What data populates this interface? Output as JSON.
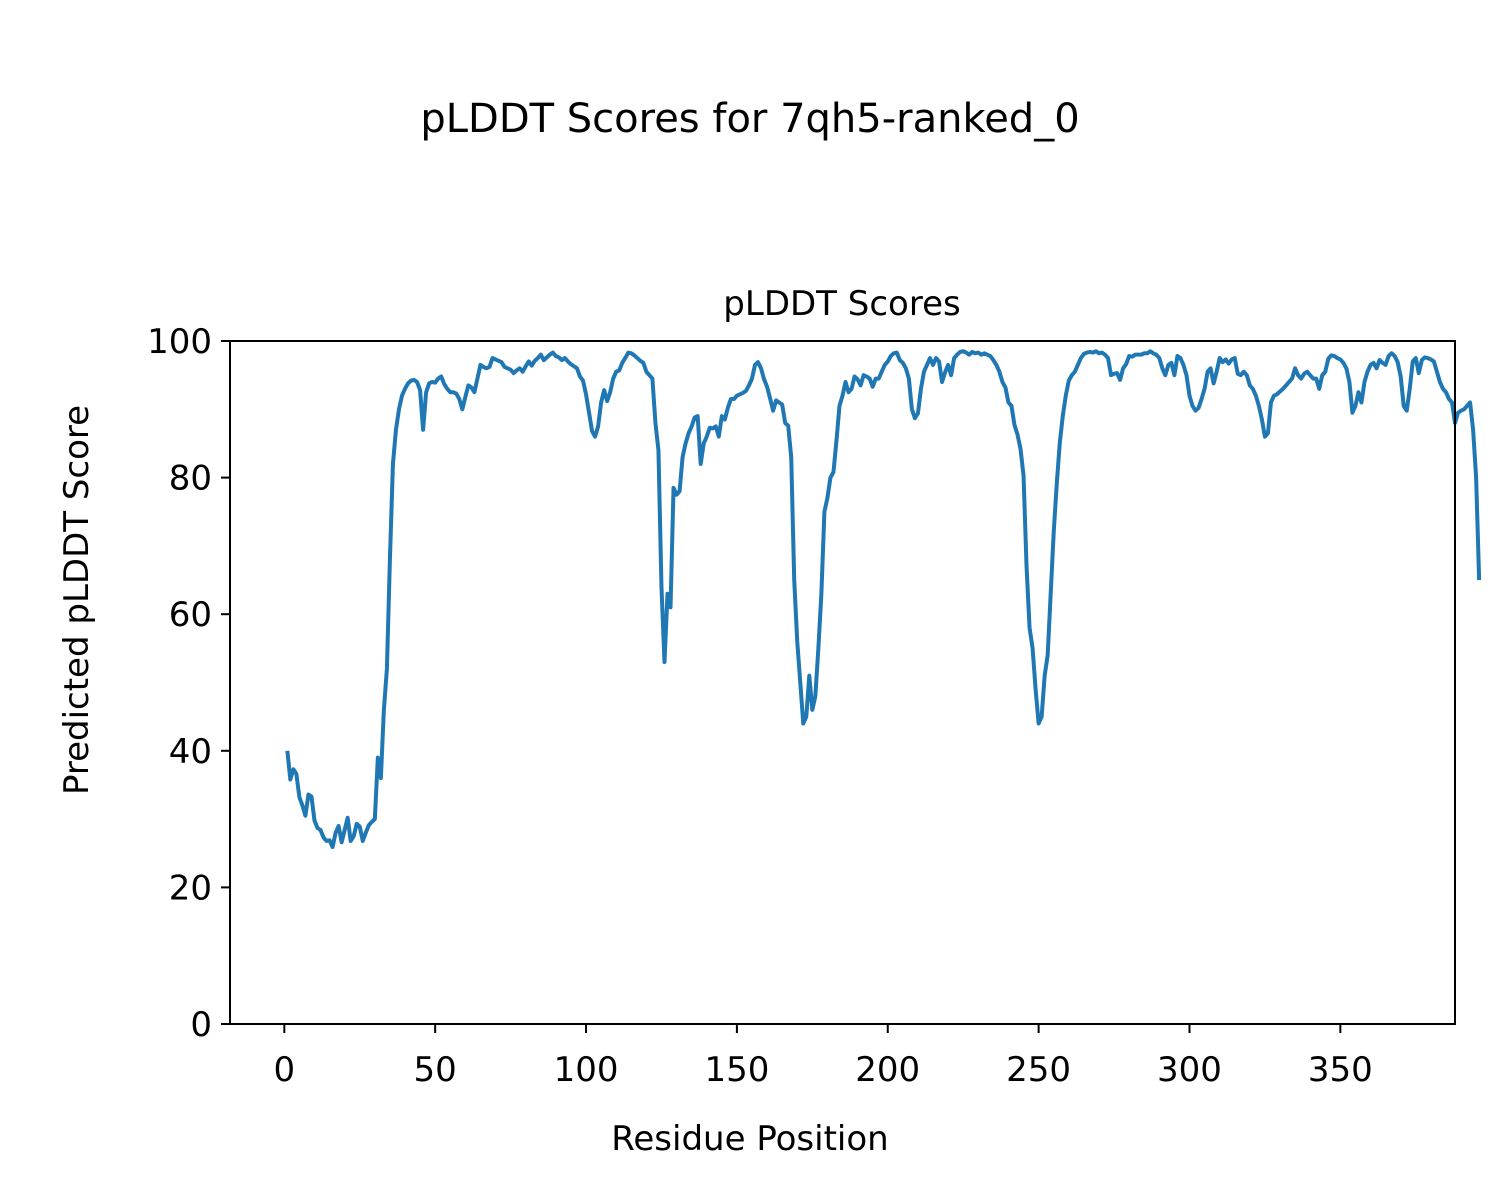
{
  "figure": {
    "suptitle": "pLDDT Scores for 7qh5-ranked_0"
  },
  "chart_data": {
    "type": "line",
    "title": "pLDDT Scores",
    "xlabel": "Residue Position",
    "ylabel": "Predicted pLDDT Score",
    "xlim": [
      -18,
      388
    ],
    "ylim": [
      0,
      100
    ],
    "xticks": [
      0,
      50,
      100,
      150,
      200,
      250,
      300,
      350
    ],
    "yticks": [
      0,
      20,
      40,
      60,
      80,
      100
    ],
    "grid": false,
    "series": [
      {
        "color": "#1f77b4",
        "x_start": 1,
        "x_step": 1,
        "values": [
          40,
          35.8,
          37.3,
          36.6,
          33.2,
          32,
          30.5,
          33.6,
          33.3,
          29.8,
          28.7,
          28.4,
          27.3,
          26.8,
          26.9,
          25.9,
          28,
          29,
          26.6,
          28.4,
          30.2,
          26.8,
          27.5,
          29.3,
          28.9,
          26.8,
          28,
          29.1,
          29.6,
          30,
          39,
          36,
          46,
          52,
          68,
          82,
          87,
          90,
          92,
          93,
          93.8,
          94.2,
          94.3,
          94,
          92.8,
          87,
          92.5,
          93.8,
          94,
          93.9,
          94.5,
          94.8,
          93.7,
          93,
          92.5,
          92.5,
          92.3,
          91.5,
          90,
          91.8,
          93.5,
          93.2,
          92.5,
          94.5,
          96.5,
          96.2,
          96,
          96.2,
          97.5,
          97.3,
          97.1,
          96.9,
          96.2,
          96,
          95.8,
          95.3,
          95.7,
          96,
          95.5,
          96.3,
          97,
          96.4,
          97.1,
          97.5,
          98,
          97.2,
          97.6,
          98,
          98.3,
          97.8,
          97.6,
          97.2,
          97.5,
          97,
          96.6,
          96.3,
          96,
          94.8,
          94.2,
          92.2,
          89.5,
          86.8,
          86,
          87.5,
          91,
          92.8,
          91.2,
          92.5,
          94.5,
          95.5,
          95.7,
          96.8,
          97.5,
          98.3,
          98.2,
          97.9,
          97.5,
          97.1,
          96.8,
          95.5,
          95,
          94.5,
          88,
          84,
          64,
          53,
          63,
          61,
          78.5,
          77.5,
          78,
          83,
          85,
          86.5,
          87.5,
          88.8,
          89,
          82,
          85,
          86,
          87.3,
          87.2,
          87.5,
          86,
          89,
          88.5,
          90.2,
          91.5,
          91.5,
          92,
          92.2,
          92.4,
          92.7,
          93.5,
          94.5,
          96.5,
          96.9,
          96,
          94.4,
          93.3,
          91.6,
          89.8,
          91.3,
          91,
          90.7,
          88,
          87.6,
          83,
          65,
          56,
          50,
          44,
          45,
          51,
          46,
          48,
          55,
          63,
          75,
          77,
          80,
          80.8,
          85.4,
          90.5,
          92,
          94,
          92.5,
          93,
          94.8,
          94.4,
          93.5,
          95,
          94.8,
          94.5,
          93.3,
          94.5,
          94.5,
          95.5,
          96.5,
          97,
          97.8,
          98.2,
          98.3,
          97.2,
          96.8,
          96,
          94.5,
          90,
          88.7,
          89.4,
          93,
          95.5,
          96.5,
          97.5,
          96.5,
          97.5,
          97,
          94,
          95.4,
          96.5,
          95,
          97.5,
          98,
          98.4,
          98.5,
          98.3,
          98,
          98.4,
          98.2,
          98.3,
          98,
          98.2,
          98,
          97.8,
          97.2,
          96.5,
          95.5,
          94,
          93.2,
          91,
          90.5,
          87.7,
          86.3,
          84.2,
          80.3,
          67,
          58,
          55,
          49,
          44,
          45,
          51,
          54,
          63,
          72,
          79,
          85,
          89,
          92,
          94.2,
          95,
          95.5,
          96.5,
          97.5,
          98.1,
          98.3,
          98.4,
          98.3,
          98.5,
          98.2,
          98.3,
          98,
          97.5,
          95,
          95.2,
          95.3,
          94.3,
          96,
          96.6,
          97.8,
          97.7,
          98,
          98,
          98,
          98.2,
          98.2,
          98.5,
          98.2,
          98,
          97.5,
          96,
          95,
          96.5,
          96.8,
          95,
          97.8,
          97.5,
          96.5,
          95,
          92,
          90.5,
          89.8,
          90.2,
          91.5,
          93,
          95.5,
          96,
          93.8,
          95.5,
          97.5,
          96.9,
          97.3,
          96.7,
          97.3,
          97.5,
          95.2,
          95,
          95.5,
          95,
          93.5,
          93,
          92,
          90.5,
          88.5,
          86,
          86.5,
          91,
          92,
          92.2,
          92.6,
          93,
          93.5,
          94,
          94.5,
          96,
          95,
          94.5,
          95.2,
          95.5,
          95,
          94.5,
          94.5,
          93,
          95,
          95.5,
          97.4,
          97.9,
          97.8,
          97.5,
          97.3,
          96.8,
          96,
          94,
          89.5,
          90.5,
          92.5,
          91,
          94,
          95.5,
          96.5,
          96.8,
          96,
          97.2,
          96.8,
          96.5,
          97.8,
          98.2,
          97.8,
          96.9,
          94.8,
          90.5,
          89.8,
          93,
          97,
          97.5,
          95.3,
          97.2,
          97.6,
          97.5,
          97.3,
          97,
          95.5,
          94,
          93,
          92.5,
          91.5,
          91,
          88,
          89.5,
          89.8,
          90,
          90.5,
          91,
          87,
          80,
          65
        ]
      }
    ]
  }
}
